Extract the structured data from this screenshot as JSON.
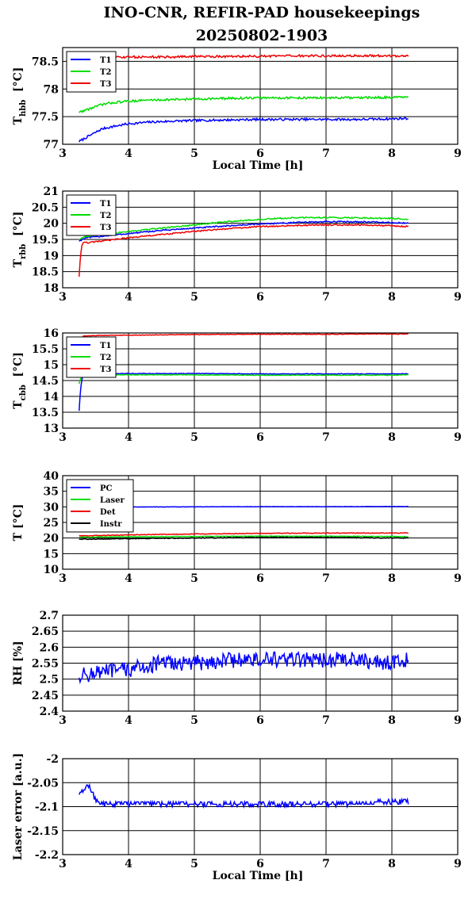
{
  "title_line1": "INO-CNR, REFIR-PAD housekeepings",
  "title_line2": "20250802-1903",
  "chart_data": [
    {
      "type": "line",
      "ylabel_main": "T",
      "ylabel_sub": "hbb",
      "ylabel_unit": "[°C]",
      "xlabel": "Local Time [h]",
      "xlim": [
        3,
        9
      ],
      "ylim": [
        77,
        78.75
      ],
      "xticks": [
        "3",
        "4",
        "5",
        "6",
        "7",
        "8",
        "9"
      ],
      "yticks": [
        {
          "v": 77,
          "label": "77"
        },
        {
          "v": 77.5,
          "label": "77.5"
        },
        {
          "v": 78,
          "label": "78"
        },
        {
          "v": 78.5,
          "label": "78.5"
        }
      ],
      "grid": true,
      "legend_position": "top-left",
      "series": [
        {
          "name": "T1",
          "color": "#0000ff",
          "noise": 0.02,
          "x": [
            3.25,
            3.4,
            3.6,
            3.8,
            4.0,
            4.3,
            4.7,
            5.0,
            5.5,
            6.0,
            6.5,
            7.0,
            7.5,
            8.0,
            8.25
          ],
          "y": [
            77.05,
            77.15,
            77.28,
            77.33,
            77.37,
            77.4,
            77.42,
            77.43,
            77.44,
            77.45,
            77.45,
            77.45,
            77.45,
            77.46,
            77.47
          ]
        },
        {
          "name": "T2",
          "color": "#00dd00",
          "noise": 0.02,
          "x": [
            3.25,
            3.4,
            3.6,
            3.8,
            4.0,
            4.3,
            4.7,
            5.0,
            5.5,
            6.0,
            6.5,
            7.0,
            7.5,
            8.0,
            8.25
          ],
          "y": [
            77.58,
            77.64,
            77.72,
            77.76,
            77.78,
            77.8,
            77.81,
            77.82,
            77.83,
            77.84,
            77.84,
            77.84,
            77.84,
            77.85,
            77.85
          ]
        },
        {
          "name": "T3",
          "color": "#ee0000",
          "noise": 0.02,
          "x": [
            3.3,
            3.4,
            3.6,
            3.8,
            4.0,
            4.3,
            4.7,
            5.0,
            5.5,
            6.0,
            6.5,
            7.0,
            7.5,
            8.0,
            8.25
          ],
          "y": [
            78.55,
            78.56,
            78.57,
            78.57,
            78.58,
            78.58,
            78.58,
            78.59,
            78.59,
            78.59,
            78.6,
            78.6,
            78.6,
            78.6,
            78.6
          ]
        }
      ]
    },
    {
      "type": "line",
      "ylabel_main": "T",
      "ylabel_sub": "rbb",
      "ylabel_unit": "[°C]",
      "xlabel": "",
      "xlim": [
        3,
        9
      ],
      "ylim": [
        18,
        21
      ],
      "xticks": [
        "3",
        "4",
        "5",
        "6",
        "7",
        "8",
        "9"
      ],
      "yticks": [
        {
          "v": 18,
          "label": "18"
        },
        {
          "v": 18.5,
          "label": "18.5"
        },
        {
          "v": 19,
          "label": "19"
        },
        {
          "v": 19.5,
          "label": "19.5"
        },
        {
          "v": 20,
          "label": "20"
        },
        {
          "v": 20.5,
          "label": "20.5"
        },
        {
          "v": 21,
          "label": "21"
        }
      ],
      "grid": true,
      "legend_position": "top-left",
      "series": [
        {
          "name": "T1",
          "color": "#0000ff",
          "noise": 0.02,
          "x": [
            3.25,
            3.35,
            3.6,
            4.0,
            4.5,
            5.0,
            5.5,
            6.0,
            6.5,
            7.0,
            7.5,
            8.0,
            8.25
          ],
          "y": [
            19.45,
            19.55,
            19.6,
            19.68,
            19.78,
            19.85,
            19.92,
            19.98,
            20.02,
            20.05,
            20.05,
            20.02,
            20.0
          ]
        },
        {
          "name": "T2",
          "color": "#00dd00",
          "noise": 0.02,
          "x": [
            3.25,
            3.35,
            3.6,
            4.0,
            4.5,
            5.0,
            5.5,
            6.0,
            6.5,
            7.0,
            7.5,
            8.0,
            8.25
          ],
          "y": [
            19.5,
            19.6,
            19.65,
            19.75,
            19.85,
            19.95,
            20.05,
            20.12,
            20.17,
            20.18,
            20.17,
            20.15,
            20.13
          ]
        },
        {
          "name": "T3",
          "color": "#ee0000",
          "noise": 0.02,
          "x": [
            3.25,
            3.27,
            3.3,
            3.4,
            3.6,
            4.0,
            4.5,
            5.0,
            5.5,
            6.0,
            6.5,
            7.0,
            7.5,
            8.0,
            8.25
          ],
          "y": [
            18.35,
            19.0,
            19.4,
            19.4,
            19.45,
            19.55,
            19.65,
            19.75,
            19.83,
            19.9,
            19.93,
            19.95,
            19.95,
            19.92,
            19.9
          ]
        }
      ]
    },
    {
      "type": "line",
      "ylabel_main": "T",
      "ylabel_sub": "cbb",
      "ylabel_unit": "[°C]",
      "xlabel": "",
      "xlim": [
        3,
        9
      ],
      "ylim": [
        13,
        16
      ],
      "xticks": [
        "3",
        "4",
        "5",
        "6",
        "7",
        "8",
        "9"
      ],
      "yticks": [
        {
          "v": 13,
          "label": "13"
        },
        {
          "v": 13.5,
          "label": "13.5"
        },
        {
          "v": 14,
          "label": "14"
        },
        {
          "v": 14.5,
          "label": "14.5"
        },
        {
          "v": 15,
          "label": "15"
        },
        {
          "v": 15.5,
          "label": "15.5"
        },
        {
          "v": 16,
          "label": "16"
        }
      ],
      "grid": true,
      "legend_position": "top-left",
      "series": [
        {
          "name": "T1",
          "color": "#0000ff",
          "noise": 0.01,
          "x": [
            3.25,
            3.27,
            3.3,
            3.4,
            4.0,
            5.0,
            6.0,
            7.0,
            8.0,
            8.25
          ],
          "y": [
            13.55,
            14.2,
            14.65,
            14.7,
            14.72,
            14.72,
            14.71,
            14.71,
            14.71,
            14.71
          ]
        },
        {
          "name": "T2",
          "color": "#00dd00",
          "noise": 0.01,
          "x": [
            3.25,
            3.27,
            3.3,
            3.4,
            4.0,
            5.0,
            6.0,
            7.0,
            8.0,
            8.25
          ],
          "y": [
            14.4,
            14.55,
            14.65,
            14.68,
            14.68,
            14.68,
            14.67,
            14.67,
            14.67,
            14.68
          ]
        },
        {
          "name": "T3",
          "color": "#ee0000",
          "noise": 0.01,
          "x": [
            3.3,
            3.5,
            4.0,
            5.0,
            6.0,
            7.0,
            8.0,
            8.25
          ],
          "y": [
            15.9,
            15.92,
            15.93,
            15.95,
            15.96,
            15.96,
            15.97,
            15.97
          ]
        }
      ]
    },
    {
      "type": "line",
      "ylabel_main": "T [°C]",
      "ylabel_sub": "",
      "ylabel_unit": "",
      "xlabel": "",
      "xlim": [
        3,
        9
      ],
      "ylim": [
        10,
        40
      ],
      "xticks": [
        "3",
        "4",
        "5",
        "6",
        "7",
        "8",
        "9"
      ],
      "yticks": [
        {
          "v": 10,
          "label": "10"
        },
        {
          "v": 15,
          "label": "15"
        },
        {
          "v": 20,
          "label": "20"
        },
        {
          "v": 25,
          "label": "25"
        },
        {
          "v": 30,
          "label": "30"
        },
        {
          "v": 35,
          "label": "35"
        },
        {
          "v": 40,
          "label": "40"
        }
      ],
      "grid": true,
      "legend_position": "top-left",
      "series": [
        {
          "name": "PC",
          "color": "#0000ff",
          "noise": 0.05,
          "x": [
            3.25,
            4.0,
            5.0,
            6.0,
            7.0,
            8.0,
            8.25
          ],
          "y": [
            29.9,
            29.95,
            30.0,
            30.05,
            30.05,
            30.1,
            30.1
          ]
        },
        {
          "name": "Laser",
          "color": "#00dd00",
          "noise": 0.08,
          "x": [
            3.25,
            4.0,
            5.0,
            6.0,
            7.0,
            8.0,
            8.25
          ],
          "y": [
            20.3,
            20.4,
            20.5,
            20.6,
            20.6,
            20.5,
            20.4
          ]
        },
        {
          "name": "Det",
          "color": "#ee0000",
          "noise": 0.1,
          "x": [
            3.25,
            4.0,
            5.0,
            6.0,
            7.0,
            8.0,
            8.25
          ],
          "y": [
            20.7,
            21.0,
            21.3,
            21.5,
            21.6,
            21.6,
            21.6
          ]
        },
        {
          "name": "Instr",
          "color": "#000000",
          "noise": 0.12,
          "x": [
            3.25,
            4.0,
            5.0,
            6.0,
            7.0,
            8.0,
            8.25
          ],
          "y": [
            19.6,
            19.8,
            20.0,
            20.2,
            20.2,
            20.0,
            20.0
          ]
        }
      ]
    },
    {
      "type": "line",
      "ylabel_main": "RH [%]",
      "ylabel_sub": "",
      "ylabel_unit": "",
      "xlabel": "",
      "xlim": [
        3,
        9
      ],
      "ylim": [
        2.4,
        2.7
      ],
      "xticks": [
        "3",
        "4",
        "5",
        "6",
        "7",
        "8",
        "9"
      ],
      "yticks": [
        {
          "v": 2.4,
          "label": "2.4"
        },
        {
          "v": 2.45,
          "label": "2.45"
        },
        {
          "v": 2.5,
          "label": "2.5"
        },
        {
          "v": 2.55,
          "label": "2.55"
        },
        {
          "v": 2.6,
          "label": "2.6"
        },
        {
          "v": 2.65,
          "label": "2.65"
        },
        {
          "v": 2.7,
          "label": "2.7"
        }
      ],
      "grid": true,
      "legend_position": "none",
      "series": [
        {
          "name": "",
          "color": "#0000ff",
          "noise": 0.025,
          "x": [
            3.25,
            3.5,
            4.0,
            4.5,
            5.0,
            5.5,
            6.0,
            6.5,
            7.0,
            7.5,
            8.0,
            8.25
          ],
          "y": [
            2.51,
            2.52,
            2.53,
            2.55,
            2.55,
            2.56,
            2.56,
            2.56,
            2.56,
            2.56,
            2.55,
            2.56
          ]
        }
      ]
    },
    {
      "type": "line",
      "ylabel_main": "Laser error [a.u.]",
      "ylabel_sub": "",
      "ylabel_unit": "",
      "xlabel": "Local Time [h]",
      "xlim": [
        3,
        9
      ],
      "ylim": [
        -2.2,
        -2.0
      ],
      "xticks": [
        "3",
        "4",
        "5",
        "6",
        "7",
        "8",
        "9"
      ],
      "yticks": [
        {
          "v": -2.2,
          "label": "-2.2"
        },
        {
          "v": -2.15,
          "label": "-2.15"
        },
        {
          "v": -2.1,
          "label": "-2.1"
        },
        {
          "v": -2.05,
          "label": "-2.05"
        },
        {
          "v": -2.0,
          "label": "-2"
        }
      ],
      "grid": true,
      "legend_position": "none",
      "series": [
        {
          "name": "",
          "color": "#0000ff",
          "noise": 0.005,
          "quant": 0.005,
          "x": [
            3.25,
            3.35,
            3.4,
            3.5,
            3.6,
            4.0,
            5.0,
            6.0,
            7.0,
            8.0,
            8.25
          ],
          "y": [
            -2.075,
            -2.06,
            -2.055,
            -2.085,
            -2.095,
            -2.093,
            -2.095,
            -2.095,
            -2.095,
            -2.09,
            -2.09
          ]
        }
      ]
    }
  ]
}
